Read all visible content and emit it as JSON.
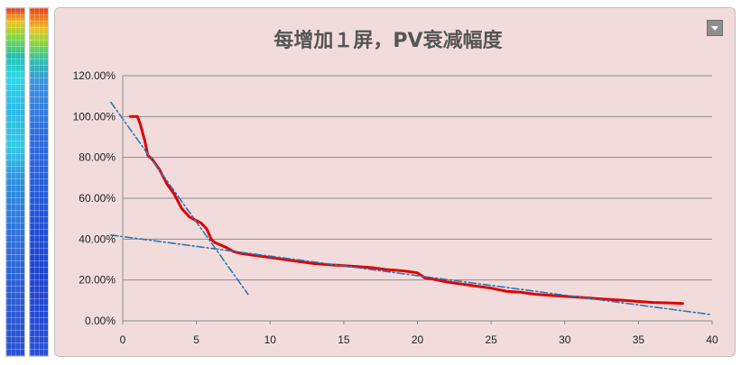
{
  "chart_data": {
    "type": "line",
    "title": "每增加１屏，PV衰减幅度",
    "xlabel": "",
    "ylabel": "",
    "xlim": [
      0,
      40
    ],
    "ylim": [
      0,
      1.2
    ],
    "x_ticks": [
      "0",
      "5",
      "10",
      "15",
      "20",
      "25",
      "30",
      "35",
      "40"
    ],
    "y_ticks": [
      "0.00%",
      "20.00%",
      "40.00%",
      "60.00%",
      "80.00%",
      "100.00%",
      "120.00%"
    ],
    "grid": true,
    "legend": "none",
    "series": [
      {
        "color": "#e00000",
        "style": "solid",
        "x": [
          0.5,
          1,
          1.2,
          1.5,
          1.7,
          2,
          2.5,
          3,
          3.5,
          4,
          4.5,
          5,
          5.3,
          5.7,
          6,
          6.2,
          7,
          7.5,
          8,
          9,
          10,
          11,
          12,
          13,
          14,
          15,
          16,
          17,
          18,
          19,
          20,
          20.5,
          21,
          22,
          23,
          24,
          25,
          26,
          27,
          28,
          29,
          30,
          31,
          32,
          33,
          34,
          35,
          36,
          37,
          38
        ],
        "y": [
          1.0,
          1.0,
          0.96,
          0.88,
          0.81,
          0.79,
          0.74,
          0.67,
          0.62,
          0.55,
          0.51,
          0.49,
          0.48,
          0.45,
          0.4,
          0.385,
          0.36,
          0.34,
          0.33,
          0.32,
          0.31,
          0.3,
          0.29,
          0.28,
          0.275,
          0.27,
          0.265,
          0.26,
          0.25,
          0.245,
          0.235,
          0.21,
          0.205,
          0.19,
          0.18,
          0.17,
          0.16,
          0.145,
          0.14,
          0.13,
          0.125,
          0.12,
          0.115,
          0.11,
          0.105,
          0.1,
          0.095,
          0.09,
          0.088,
          0.085
        ]
      },
      {
        "color": "#2e75b6",
        "style": "dash-dot",
        "x": [
          -0.8,
          8.5
        ],
        "y": [
          1.07,
          0.13
        ]
      },
      {
        "color": "#2e75b6",
        "style": "dash-dot",
        "x": [
          -0.8,
          40
        ],
        "y": [
          0.42,
          0.03
        ]
      }
    ]
  }
}
